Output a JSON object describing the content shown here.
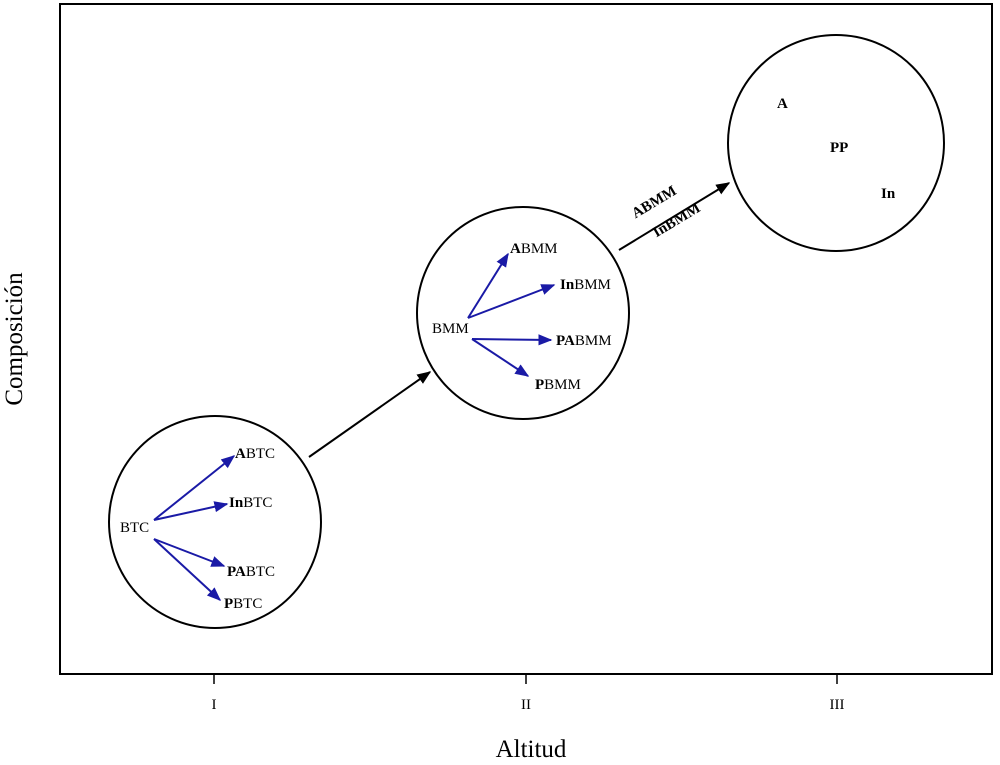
{
  "axes": {
    "xlabel": "Altitud",
    "ylabel": "Composición",
    "ticks": [
      "I",
      "II",
      "III"
    ]
  },
  "groups": {
    "g1": {
      "source": "BTC",
      "targets": [
        {
          "bold": "A",
          "rest": "BTC"
        },
        {
          "bold": "In",
          "rest": "BTC"
        },
        {
          "bold": "PA",
          "rest": "BTC"
        },
        {
          "bold": "P",
          "rest": "BTC"
        }
      ]
    },
    "g2": {
      "source": "BMM",
      "targets": [
        {
          "bold": "A",
          "rest": "BMM"
        },
        {
          "bold": "In",
          "rest": "BMM"
        },
        {
          "bold": "PA",
          "rest": "BMM"
        },
        {
          "bold": "P",
          "rest": "BMM"
        }
      ]
    },
    "g3": {
      "items": [
        "A",
        "PP",
        "In"
      ]
    }
  },
  "transition_labels": [
    "ABMM",
    "InBMM"
  ],
  "colors": {
    "arrow_blue": "#1a1aa6",
    "line": "#000000"
  }
}
